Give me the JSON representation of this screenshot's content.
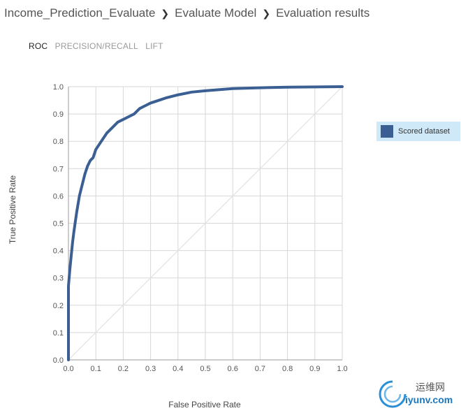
{
  "breadcrumb": {
    "items": [
      "Income_Prediction_Evaluate",
      "Evaluate Model",
      "Evaluation results"
    ],
    "separator": "❯"
  },
  "tabs": [
    {
      "label": "ROC",
      "active": true
    },
    {
      "label": "PRECISION/RECALL",
      "active": false
    },
    {
      "label": "LIFT",
      "active": false
    }
  ],
  "legend": {
    "label": "Scored dataset",
    "color": "#3b5f93",
    "background": "#cfe9f8"
  },
  "colors": {
    "curve": "#3b5f93",
    "diagonal": "#e2e2e2",
    "grid": "#d7d7d7",
    "axis": "#9a9a9a"
  },
  "watermark": {
    "text_top": "运维网",
    "text_bottom": "iyunv.com",
    "color": "#1a78c2"
  },
  "chart_data": {
    "type": "line",
    "xlabel": "False Positive Rate",
    "ylabel": "True Positive Rate",
    "xlim": [
      0.0,
      1.0
    ],
    "ylim": [
      0.0,
      1.0
    ],
    "xticks": [
      "0.0",
      "0.1",
      "0.2",
      "0.3",
      "0.4",
      "0.5",
      "0.6",
      "0.7",
      "0.8",
      "0.9",
      "1.0"
    ],
    "yticks": [
      "0.0",
      "0.1",
      "0.2",
      "0.3",
      "0.4",
      "0.5",
      "0.6",
      "0.7",
      "0.8",
      "0.9",
      "1.0"
    ],
    "grid": true,
    "legend_position": "right",
    "series": [
      {
        "name": "Scored dataset",
        "x": [
          0.0,
          0.0,
          0.005,
          0.01,
          0.015,
          0.02,
          0.03,
          0.04,
          0.05,
          0.06,
          0.07,
          0.08,
          0.09,
          0.1,
          0.12,
          0.14,
          0.16,
          0.18,
          0.2,
          0.22,
          0.24,
          0.26,
          0.28,
          0.3,
          0.33,
          0.36,
          0.4,
          0.45,
          0.5,
          0.6,
          0.7,
          0.8,
          0.9,
          1.0
        ],
        "y": [
          0.0,
          0.27,
          0.33,
          0.38,
          0.43,
          0.47,
          0.54,
          0.6,
          0.64,
          0.68,
          0.71,
          0.73,
          0.74,
          0.77,
          0.8,
          0.83,
          0.85,
          0.87,
          0.88,
          0.89,
          0.9,
          0.92,
          0.93,
          0.94,
          0.95,
          0.96,
          0.97,
          0.98,
          0.985,
          0.993,
          0.996,
          0.998,
          0.999,
          1.0
        ]
      },
      {
        "name": "",
        "x": [
          0.0,
          1.0
        ],
        "y": [
          0.0,
          1.0
        ]
      }
    ]
  }
}
